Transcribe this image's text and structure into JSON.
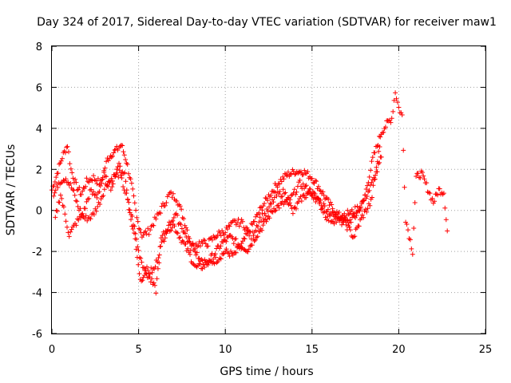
{
  "chart_data": {
    "type": "scatter",
    "title": "Day 324 of 2017, Sidereal Day-to-day VTEC variation (SDTVAR) for receiver maw1",
    "xlabel": "GPS time / hours",
    "ylabel": "SDTVAR / TECUs",
    "xlim": [
      0,
      25
    ],
    "ylim": [
      -6,
      8
    ],
    "xticks": [
      "0",
      "5",
      "10",
      "15",
      "20",
      "25"
    ],
    "yticks": [
      "-6",
      "-4",
      "-2",
      "0",
      "2",
      "4",
      "6",
      "8"
    ],
    "grid": true,
    "marker": "+",
    "color": "#ff0000",
    "series": [
      {
        "name": "SDTVAR",
        "trace_a": [
          [
            0,
            1.0
          ],
          [
            0.3,
            1.8
          ],
          [
            0.6,
            2.6
          ],
          [
            0.9,
            3.2
          ],
          [
            1.1,
            2.0
          ],
          [
            1.4,
            1.2
          ],
          [
            1.7,
            0.8
          ],
          [
            2.0,
            1.4
          ],
          [
            2.4,
            1.6
          ],
          [
            2.8,
            1.3
          ],
          [
            3.2,
            2.5
          ],
          [
            3.5,
            2.8
          ],
          [
            3.8,
            3.0
          ],
          [
            4.0,
            3.2
          ],
          [
            4.3,
            2.4
          ],
          [
            4.6,
            1.2
          ],
          [
            4.9,
            -0.4
          ],
          [
            5.2,
            -1.2
          ],
          [
            5.6,
            -1.0
          ],
          [
            6.0,
            -0.4
          ],
          [
            6.4,
            0.2
          ],
          [
            6.8,
            0.8
          ],
          [
            7.2,
            0.6
          ],
          [
            7.6,
            -0.4
          ],
          [
            8.0,
            -1.5
          ],
          [
            8.5,
            -2.3
          ],
          [
            9.0,
            -2.6
          ],
          [
            9.5,
            -2.4
          ],
          [
            10.0,
            -2.0
          ],
          [
            10.5,
            -2.2
          ],
          [
            11.0,
            -1.6
          ],
          [
            11.5,
            -0.8
          ],
          [
            12.0,
            0.0
          ],
          [
            12.5,
            0.7
          ],
          [
            13.0,
            1.3
          ],
          [
            13.5,
            1.7
          ],
          [
            14.0,
            1.9
          ],
          [
            14.5,
            1.9
          ],
          [
            15.0,
            1.6
          ],
          [
            15.5,
            1.0
          ],
          [
            16.0,
            0.3
          ],
          [
            16.5,
            -0.2
          ],
          [
            17.0,
            -0.6
          ],
          [
            17.5,
            -0.3
          ],
          [
            18.0,
            0.5
          ],
          [
            18.5,
            2.5
          ],
          [
            19.0,
            3.8
          ],
          [
            19.3,
            4.2
          ],
          [
            19.6,
            4.5
          ],
          [
            19.8,
            5.8
          ],
          [
            20.0,
            5.0
          ],
          [
            20.2,
            4.6
          ],
          [
            20.4,
            -0.4
          ],
          [
            20.6,
            -1.2
          ],
          [
            20.8,
            -2.0
          ],
          [
            21.0,
            1.6
          ],
          [
            21.3,
            1.8
          ],
          [
            21.6,
            1.2
          ],
          [
            22.0,
            0.4
          ],
          [
            22.3,
            1.0
          ],
          [
            22.6,
            0.9
          ],
          [
            22.8,
            -1.0
          ]
        ],
        "trace_b": [
          [
            0.1,
            0.7
          ],
          [
            0.4,
            1.4
          ],
          [
            0.8,
            1.6
          ],
          [
            1.2,
            1.0
          ],
          [
            1.5,
            0.2
          ],
          [
            1.9,
            -0.4
          ],
          [
            2.3,
            -0.3
          ],
          [
            2.7,
            0.3
          ],
          [
            3.1,
            1.2
          ],
          [
            3.5,
            1.6
          ],
          [
            3.9,
            1.8
          ],
          [
            4.3,
            0.7
          ],
          [
            4.7,
            -0.6
          ],
          [
            5.0,
            -2.0
          ],
          [
            5.3,
            -2.8
          ],
          [
            5.6,
            -3.0
          ],
          [
            5.9,
            -2.9
          ],
          [
            6.2,
            -2.0
          ],
          [
            6.6,
            -1.0
          ],
          [
            7.0,
            -0.7
          ],
          [
            7.4,
            -1.3
          ],
          [
            7.9,
            -2.1
          ],
          [
            8.3,
            -2.8
          ],
          [
            8.8,
            -2.7
          ],
          [
            9.3,
            -2.2
          ],
          [
            9.8,
            -1.6
          ],
          [
            10.3,
            -1.3
          ],
          [
            10.8,
            -1.7
          ],
          [
            11.3,
            -1.9
          ],
          [
            11.8,
            -1.2
          ],
          [
            12.3,
            -0.6
          ],
          [
            12.8,
            0.1
          ],
          [
            13.3,
            0.3
          ],
          [
            13.8,
            0.6
          ],
          [
            14.3,
            1.3
          ],
          [
            14.8,
            1.0
          ],
          [
            15.3,
            0.6
          ],
          [
            15.8,
            0.1
          ],
          [
            16.3,
            -0.3
          ],
          [
            16.8,
            -0.2
          ],
          [
            17.3,
            -0.1
          ],
          [
            17.8,
            0.2
          ],
          [
            18.3,
            1.0
          ],
          [
            18.7,
            1.8
          ],
          [
            19.0,
            2.6
          ]
        ],
        "trace_c": [
          [
            0.2,
            -0.4
          ],
          [
            0.5,
            0.8
          ],
          [
            1.0,
            -1.2
          ],
          [
            1.4,
            -0.6
          ],
          [
            1.8,
            -0.2
          ],
          [
            2.2,
            0.9
          ],
          [
            2.6,
            0.7
          ],
          [
            3.0,
            1.7
          ],
          [
            3.4,
            1.1
          ],
          [
            3.8,
            2.2
          ],
          [
            4.2,
            1.8
          ],
          [
            4.5,
            -0.2
          ],
          [
            4.8,
            -1.4
          ],
          [
            5.1,
            -3.4
          ],
          [
            5.4,
            -3.0
          ],
          [
            5.7,
            -3.4
          ],
          [
            6.0,
            -3.9
          ],
          [
            6.3,
            -1.4
          ],
          [
            6.7,
            -0.8
          ],
          [
            7.1,
            -0.2
          ],
          [
            7.5,
            -0.8
          ],
          [
            8.0,
            -1.8
          ],
          [
            8.5,
            -1.6
          ],
          [
            9.0,
            -1.6
          ],
          [
            9.5,
            -1.2
          ],
          [
            10.0,
            -1.0
          ],
          [
            10.5,
            -0.6
          ],
          [
            11.0,
            -0.6
          ],
          [
            11.5,
            -1.3
          ],
          [
            12.0,
            -0.4
          ],
          [
            12.4,
            -0.1
          ],
          [
            12.9,
            0.7
          ],
          [
            13.4,
            0.9
          ],
          [
            13.9,
            -0.1
          ],
          [
            14.4,
            0.6
          ],
          [
            14.9,
            0.9
          ],
          [
            15.4,
            0.4
          ],
          [
            15.9,
            -0.4
          ],
          [
            16.4,
            -0.5
          ],
          [
            16.9,
            -0.6
          ],
          [
            17.4,
            -1.3
          ],
          [
            17.9,
            -0.3
          ],
          [
            18.4,
            0.4
          ],
          [
            18.9,
            3.1
          ]
        ]
      }
    ]
  }
}
